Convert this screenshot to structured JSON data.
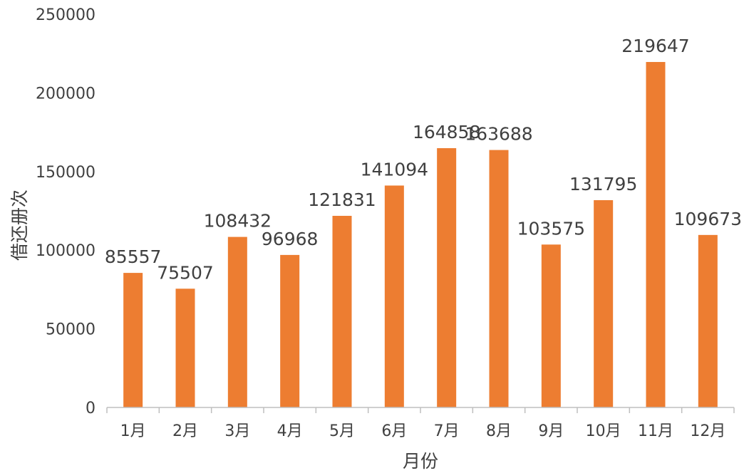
{
  "chart_data": {
    "type": "bar",
    "categories": [
      "1月",
      "2月",
      "3月",
      "4月",
      "5月",
      "6月",
      "7月",
      "8月",
      "9月",
      "10月",
      "11月",
      "12月"
    ],
    "values": [
      85557,
      75507,
      108432,
      96968,
      121831,
      141094,
      164858,
      163688,
      103575,
      131795,
      219647,
      109673
    ],
    "data_labels": [
      "85557",
      "75507",
      "108432",
      "96968",
      "121831",
      "141094",
      "164858",
      "163688",
      "103575",
      "131795",
      "219647",
      "109673"
    ],
    "xlabel": "月份",
    "ylabel": "借还册次",
    "ylim": [
      0,
      250000
    ],
    "yticks": [
      0,
      50000,
      100000,
      150000,
      200000,
      250000
    ],
    "ytick_labels": [
      "0",
      "50000",
      "100000",
      "150000",
      "200000",
      "250000"
    ],
    "bar_color": "#ED7D31",
    "axis_color": "#BFBFBF",
    "grid": false,
    "legend": "none"
  }
}
